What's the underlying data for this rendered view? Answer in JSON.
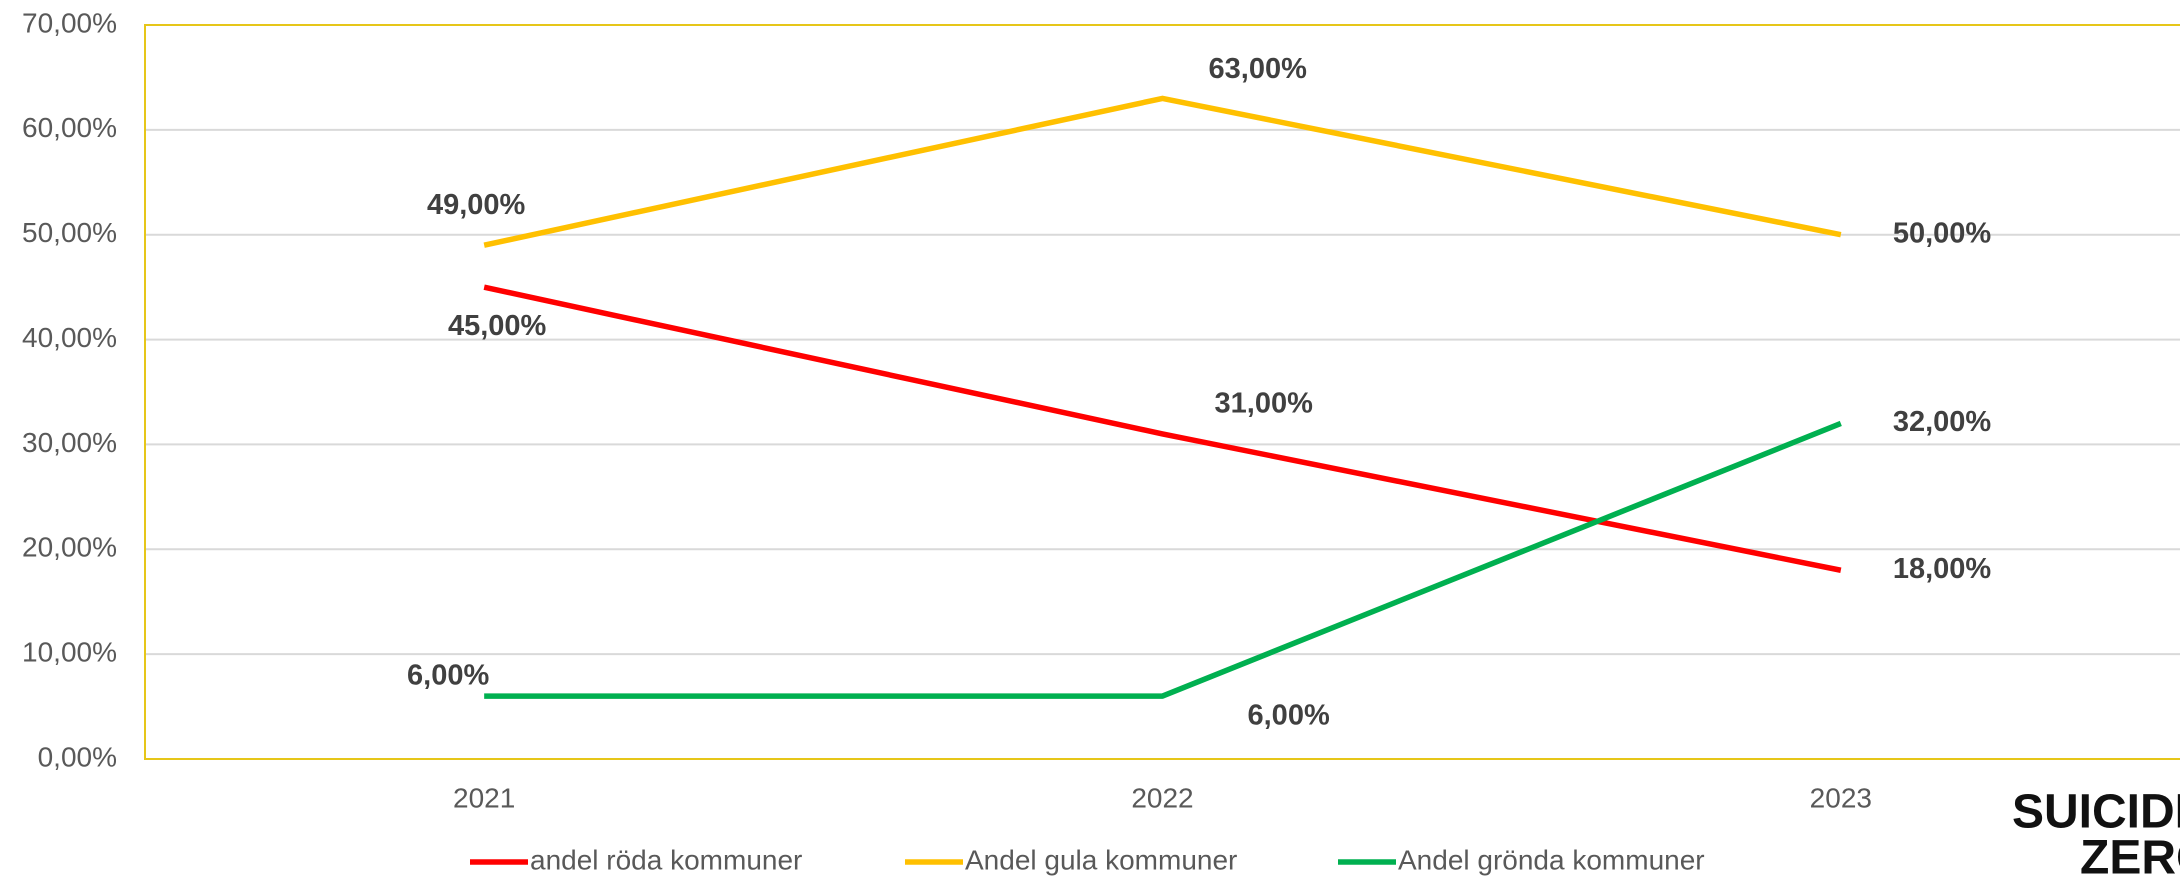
{
  "chart_data": {
    "type": "line",
    "categories": [
      "2021",
      "2022",
      "2023"
    ],
    "series": [
      {
        "name": "andel röda kommuner",
        "color": "#ff0000",
        "values": [
          45,
          31,
          18
        ],
        "value_labels": [
          "45,00%",
          "31,00%",
          "18,00%"
        ]
      },
      {
        "name": "Andel gula kommuner",
        "color": "#ffc000",
        "values": [
          49,
          63,
          50
        ],
        "value_labels": [
          "49,00%",
          "63,00%",
          "50,00%"
        ]
      },
      {
        "name": "Andel grönda kommuner",
        "color": "#00b050",
        "values": [
          6,
          6,
          32
        ],
        "value_labels": [
          "6,00%",
          "6,00%",
          "32,00%"
        ]
      }
    ],
    "ylim": [
      0,
      70
    ],
    "yticks": [
      {
        "value": 0,
        "label": "0,00%"
      },
      {
        "value": 10,
        "label": "10,00%"
      },
      {
        "value": 20,
        "label": "20,00%"
      },
      {
        "value": 30,
        "label": "30,00%"
      },
      {
        "value": 40,
        "label": "40,00%"
      },
      {
        "value": 50,
        "label": "50,00%"
      },
      {
        "value": 60,
        "label": "60,00%"
      },
      {
        "value": 70,
        "label": "70,00%"
      }
    ],
    "grid": true,
    "legend": "bottom",
    "logo": [
      "SUICIDE",
      "ZERO"
    ]
  }
}
